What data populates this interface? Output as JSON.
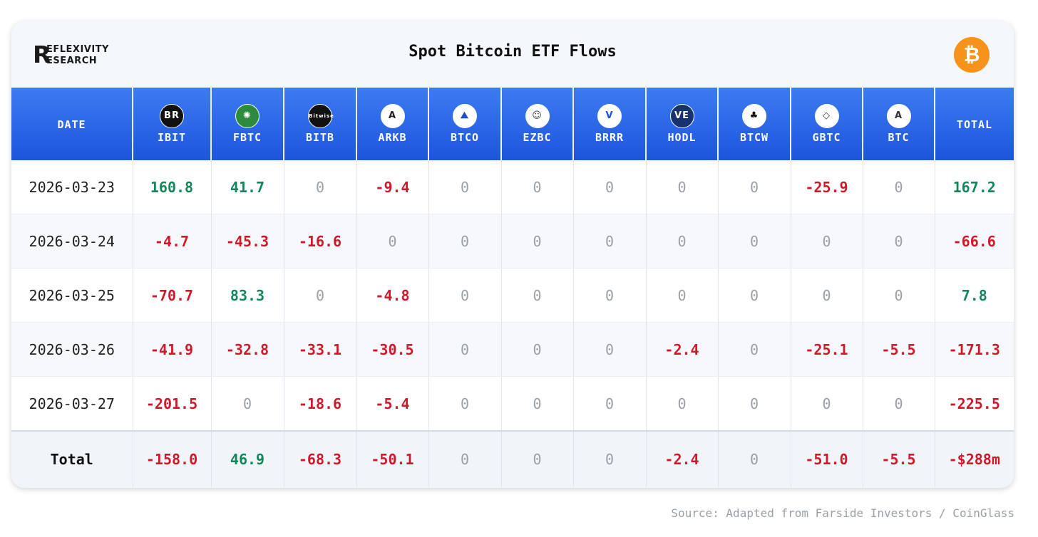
{
  "header": {
    "logo_text_line1": "EFLEXIVITY",
    "logo_text_line2": "ESEARCH",
    "logo_letter": "R",
    "title": "Spot Bitcoin ETF Flows",
    "btc_symbol": "₿"
  },
  "chart_data": {
    "type": "table",
    "title": "Spot Bitcoin ETF Flows",
    "columns": [
      "DATE",
      "IBIT",
      "FBTC",
      "BITB",
      "ARKB",
      "BTCO",
      "EZBC",
      "BRRR",
      "HODL",
      "BTCW",
      "GBTC",
      "BTC",
      "TOTAL"
    ],
    "rows": [
      [
        "2026-03-23",
        "160.8",
        "41.7",
        "0",
        "-9.4",
        "0",
        "0",
        "0",
        "0",
        "0",
        "-25.9",
        "0",
        "167.2"
      ],
      [
        "2026-03-24",
        "-4.7",
        "-45.3",
        "-16.6",
        "0",
        "0",
        "0",
        "0",
        "0",
        "0",
        "0",
        "0",
        "-66.6"
      ],
      [
        "2026-03-25",
        "-70.7",
        "83.3",
        "0",
        "-4.8",
        "0",
        "0",
        "0",
        "0",
        "0",
        "0",
        "0",
        "7.8"
      ],
      [
        "2026-03-26",
        "-41.9",
        "-32.8",
        "-33.1",
        "-30.5",
        "0",
        "0",
        "0",
        "-2.4",
        "0",
        "-25.1",
        "-5.5",
        "-171.3"
      ],
      [
        "2026-03-27",
        "-201.5",
        "0",
        "-18.6",
        "-5.4",
        "0",
        "0",
        "0",
        "0",
        "0",
        "0",
        "0",
        "-225.5"
      ]
    ],
    "total_row": [
      "Total",
      "-158.0",
      "46.9",
      "-68.3",
      "-50.1",
      "0",
      "0",
      "0",
      "-2.4",
      "0",
      "-51.0",
      "-5.5",
      "-$288m"
    ]
  },
  "icons": [
    {
      "name": "blackrock-icon",
      "text": "BR",
      "bg": "#111111",
      "fg": "#ffffff"
    },
    {
      "name": "fidelity-icon",
      "text": "✺",
      "bg": "#2e8b3d",
      "fg": "#ffffff"
    },
    {
      "name": "bitwise-icon",
      "text": "Bitwise",
      "bg": "#111111",
      "fg": "#ffffff"
    },
    {
      "name": "ark-icon",
      "text": "A",
      "bg": "#ffffff",
      "fg": "#222222"
    },
    {
      "name": "invesco-icon",
      "text": "⛰",
      "bg": "#ffffff",
      "fg": "#1d4fc4"
    },
    {
      "name": "franklin-icon",
      "text": "☺",
      "bg": "#ffffff",
      "fg": "#444444"
    },
    {
      "name": "valkyrie-icon",
      "text": "V",
      "bg": "#ffffff",
      "fg": "#1d55dc"
    },
    {
      "name": "vaneck-icon",
      "text": "VE",
      "bg": "#16336e",
      "fg": "#ffffff"
    },
    {
      "name": "wisdomtree-icon",
      "text": "♣",
      "bg": "#ffffff",
      "fg": "#111111"
    },
    {
      "name": "grayscale-icon",
      "text": "◇",
      "bg": "#ffffff",
      "fg": "#333333"
    },
    {
      "name": "grayscale-mini-icon",
      "text": "A",
      "bg": "#ffffff",
      "fg": "#333333"
    }
  ],
  "colors": {
    "positive": "#12875a",
    "negative": "#d1182b",
    "zero": "#9aa0a8",
    "header_blue": "#1d55dc",
    "bitcoin_orange": "#f7931a"
  },
  "footer": {
    "source": "Source: Adapted from Farside Investors / CoinGlass"
  }
}
